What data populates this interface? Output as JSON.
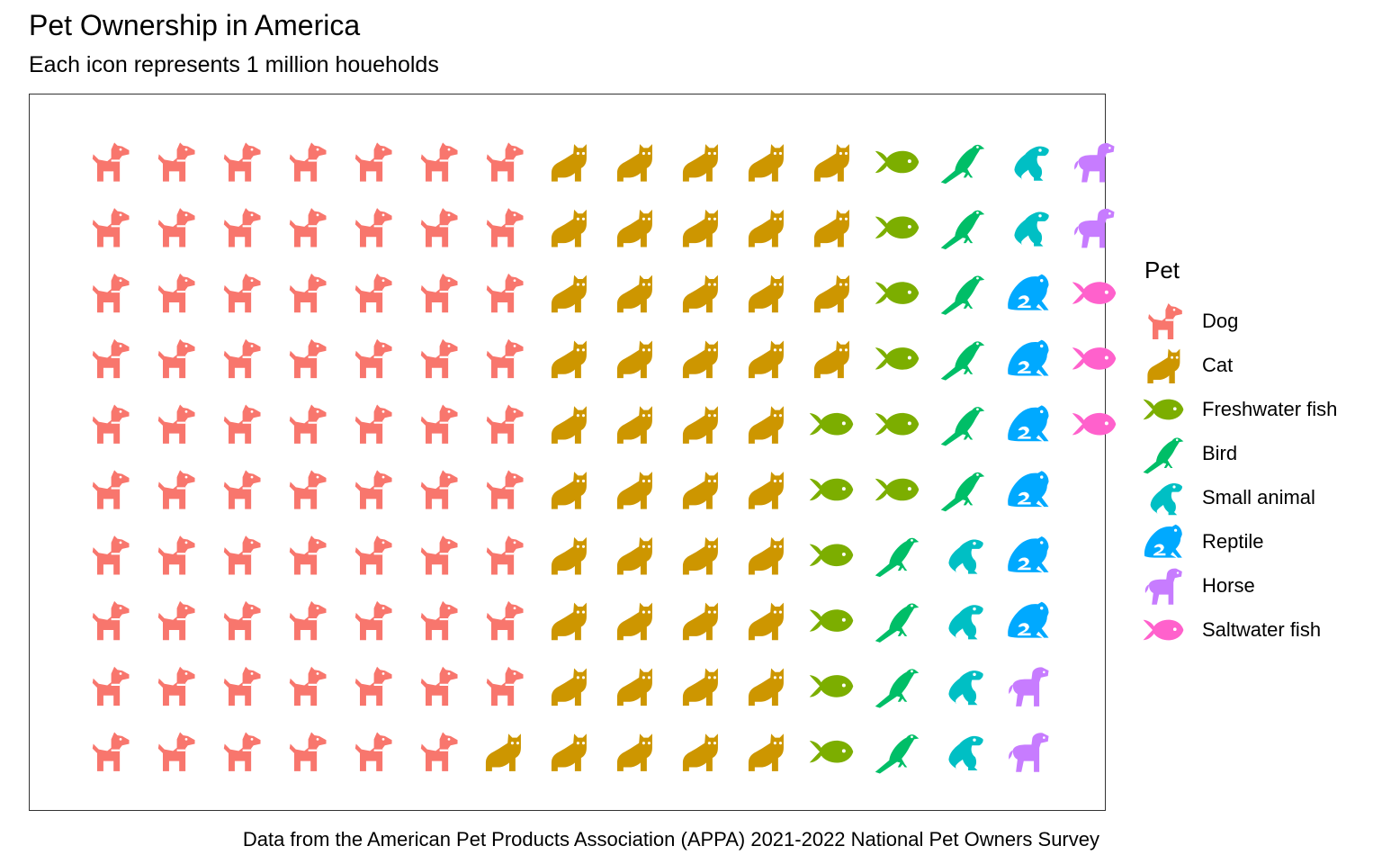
{
  "title": "Pet Ownership in America",
  "subtitle": "Each icon represents 1 million houeholds",
  "caption": "Data from the American Pet Products Association (APPA) 2021-2022 National Pet Owners Survey",
  "chart_data": {
    "type": "pictogram",
    "unit": "1 million households",
    "rows": 10,
    "columns": 15,
    "fill_order": "column-major, top to bottom, left to right",
    "grid": false,
    "legend_title": "Pet",
    "legend_position": "right",
    "series": [
      {
        "name": "Dog",
        "value": 69,
        "color": "#F8766D",
        "icon": "dog-icon"
      },
      {
        "name": "Cat",
        "value": 45.3,
        "color": "#CD9600",
        "icon": "cat-icon"
      },
      {
        "name": "Freshwater fish",
        "value": 11.8,
        "color": "#7CAE00",
        "icon": "fish-icon"
      },
      {
        "name": "Bird",
        "value": 9.9,
        "color": "#00BE67",
        "icon": "bird-icon"
      },
      {
        "name": "Small animal",
        "value": 6.2,
        "color": "#00BFC4",
        "icon": "frog-icon"
      },
      {
        "name": "Reptile",
        "value": 5.7,
        "color": "#00A9FF",
        "icon": "frog-front-icon"
      },
      {
        "name": "Horse",
        "value": 3.5,
        "color": "#C77CFF",
        "icon": "horse-icon"
      },
      {
        "name": "Saltwater fish",
        "value": 2.9,
        "color": "#FF61CC",
        "icon": "fish-icon"
      }
    ]
  }
}
